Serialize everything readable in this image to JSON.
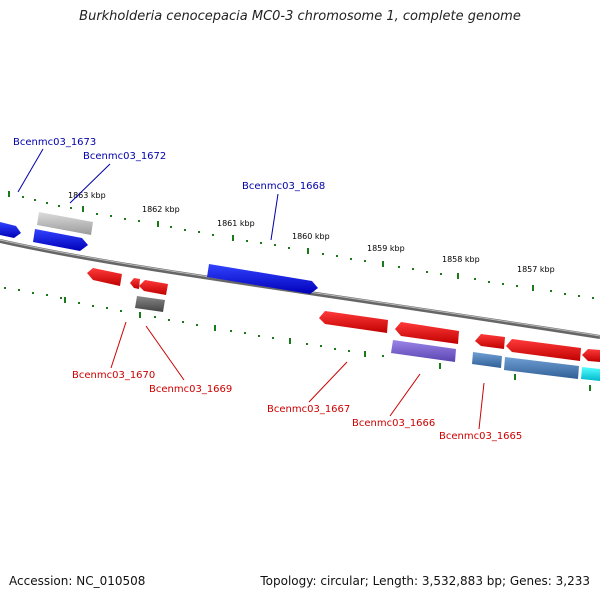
{
  "title": "Burkholderia cenocepacia MC0-3 chromosome 1, complete genome",
  "footer": {
    "accession": "Accession: NC_010508",
    "topology": "Topology: circular; Length: 3,532,883 bp; Genes: 3,233"
  },
  "ticks": [
    "1863 kbp",
    "1862 kbp",
    "1861 kbp",
    "1860 kbp",
    "1859 kbp",
    "1858 kbp",
    "1857 kbp"
  ],
  "gene_labels": {
    "top": [
      "Bcenmc03_1673",
      "Bcenmc03_1672",
      "Bcenmc03_1668"
    ],
    "bottom": [
      "Bcenmc03_1670",
      "Bcenmc03_1669",
      "Bcenmc03_1667",
      "Bcenmc03_1666",
      "Bcenmc03_1665"
    ]
  },
  "colors": {
    "forward_label": "#0000aa",
    "reverse_label": "#cc0000",
    "tick": "#1a7a1a",
    "backbone": "#777777"
  }
}
